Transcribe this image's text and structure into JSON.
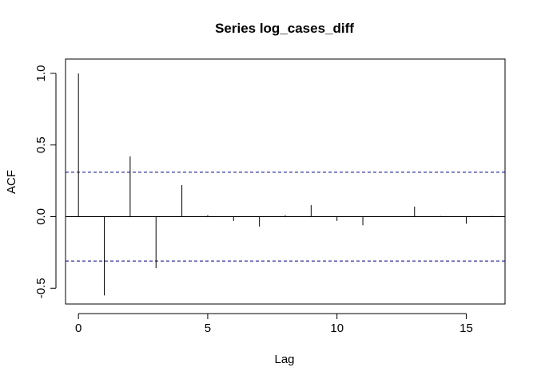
{
  "chart_data": {
    "type": "bar",
    "title": "Series  log_cases_diff",
    "xlabel": "Lag",
    "ylabel": "ACF",
    "xlim": [
      -0.5,
      16.5
    ],
    "ylim": [
      -0.61,
      1.1
    ],
    "x_ticks": [
      0,
      5,
      10,
      15
    ],
    "x_tick_labels": [
      "0",
      "5",
      "10",
      "15"
    ],
    "y_ticks": [
      -0.5,
      0.0,
      0.5,
      1.0
    ],
    "y_tick_labels": [
      "-0.5",
      "0.0",
      "0.5",
      "1.0"
    ],
    "lags": [
      0,
      1,
      2,
      3,
      4,
      5,
      6,
      7,
      8,
      9,
      10,
      11,
      12,
      13,
      14,
      15,
      16
    ],
    "values": [
      1.0,
      -0.55,
      0.42,
      -0.36,
      0.22,
      0.01,
      -0.03,
      -0.07,
      0.01,
      0.08,
      -0.03,
      -0.06,
      0.0,
      0.07,
      0.005,
      -0.05,
      0.005
    ],
    "confidence_bound": 0.31,
    "confidence_color": "#00008B",
    "bar_color": "#000000",
    "grid": false
  }
}
